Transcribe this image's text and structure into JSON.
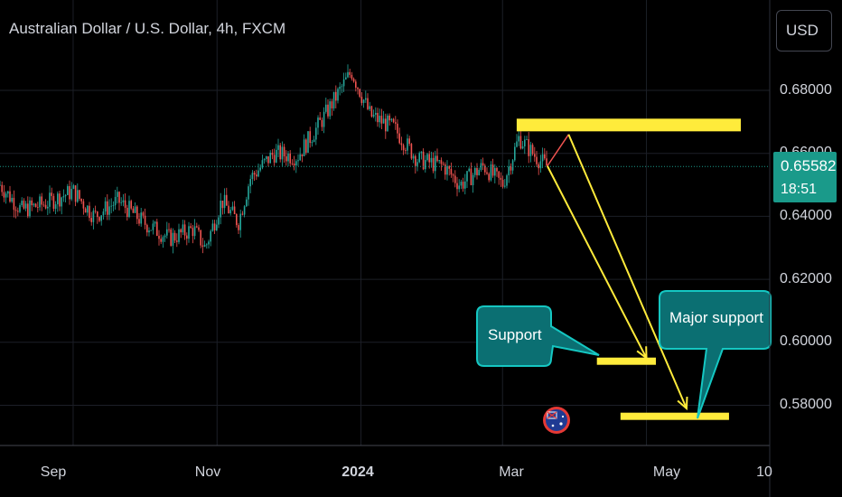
{
  "header": {
    "symbol_title": "Australian Dollar / U.S. Dollar, 4h, FXCM",
    "currency_button": "USD"
  },
  "price_label": {
    "price": "0.65582",
    "countdown": "18:51"
  },
  "annotations": {
    "support_label": "Support",
    "major_support_label": "Major support"
  },
  "colors": {
    "up": "#26a69a",
    "down": "#ef5350",
    "level": "#ffeb3b",
    "callout_fill": "#0b6f72",
    "callout_border": "#15c7c2",
    "price_line": "#1a9a8a"
  },
  "icons": {
    "event_marker": "australia-flag-icon"
  },
  "chart_data": {
    "type": "candlestick",
    "title": "Australian Dollar / U.S. Dollar, 4h, FXCM",
    "y_ticks": [
      "0.68000",
      "0.66000",
      "0.64000",
      "0.62000",
      "0.60000",
      "0.58000"
    ],
    "x_ticks": [
      "Sep",
      "Nov",
      "2024",
      "Mar",
      "May",
      "10"
    ],
    "ylim": [
      0.566,
      0.707
    ],
    "current_price": 0.65582,
    "price_path": [
      {
        "x": "2023-08-01",
        "y": 0.65
      },
      {
        "x": "2023-08-10",
        "y": 0.642
      },
      {
        "x": "2023-08-20",
        "y": 0.644
      },
      {
        "x": "2023-09-01",
        "y": 0.648
      },
      {
        "x": "2023-09-10",
        "y": 0.64
      },
      {
        "x": "2023-09-20",
        "y": 0.645
      },
      {
        "x": "2023-10-01",
        "y": 0.638
      },
      {
        "x": "2023-10-12",
        "y": 0.633
      },
      {
        "x": "2023-10-22",
        "y": 0.636
      },
      {
        "x": "2023-10-27",
        "y": 0.63
      },
      {
        "x": "2023-11-03",
        "y": 0.645
      },
      {
        "x": "2023-11-10",
        "y": 0.638
      },
      {
        "x": "2023-11-15",
        "y": 0.652
      },
      {
        "x": "2023-11-25",
        "y": 0.66
      },
      {
        "x": "2023-12-05",
        "y": 0.659
      },
      {
        "x": "2023-12-15",
        "y": 0.67
      },
      {
        "x": "2023-12-28",
        "y": 0.686
      },
      {
        "x": "2024-01-05",
        "y": 0.672
      },
      {
        "x": "2024-01-15",
        "y": 0.668
      },
      {
        "x": "2024-01-25",
        "y": 0.658
      },
      {
        "x": "2024-02-05",
        "y": 0.656
      },
      {
        "x": "2024-02-12",
        "y": 0.65
      },
      {
        "x": "2024-02-22",
        "y": 0.656
      },
      {
        "x": "2024-03-01",
        "y": 0.65
      },
      {
        "x": "2024-03-08",
        "y": 0.665
      },
      {
        "x": "2024-03-15",
        "y": 0.659
      },
      {
        "x": "2024-03-20",
        "y": 0.6558
      }
    ],
    "levels": [
      {
        "name": "resistance",
        "y": 0.669,
        "x_start": "2024-03-07",
        "x_end": "2024-06-10"
      },
      {
        "name": "support",
        "y": 0.594,
        "x_start": "2024-04-10",
        "x_end": "2024-05-05"
      },
      {
        "name": "major-support",
        "y": 0.5765,
        "x_start": "2024-04-20",
        "x_end": "2024-06-05"
      }
    ],
    "projection_arrows": [
      {
        "from": {
          "x": "2024-03-20",
          "y": 0.656
        },
        "to": {
          "x": "2024-05-01",
          "y": 0.595
        }
      },
      {
        "from": {
          "x": "2024-03-29",
          "y": 0.666
        },
        "to": {
          "x": "2024-05-18",
          "y": 0.579
        }
      }
    ]
  }
}
